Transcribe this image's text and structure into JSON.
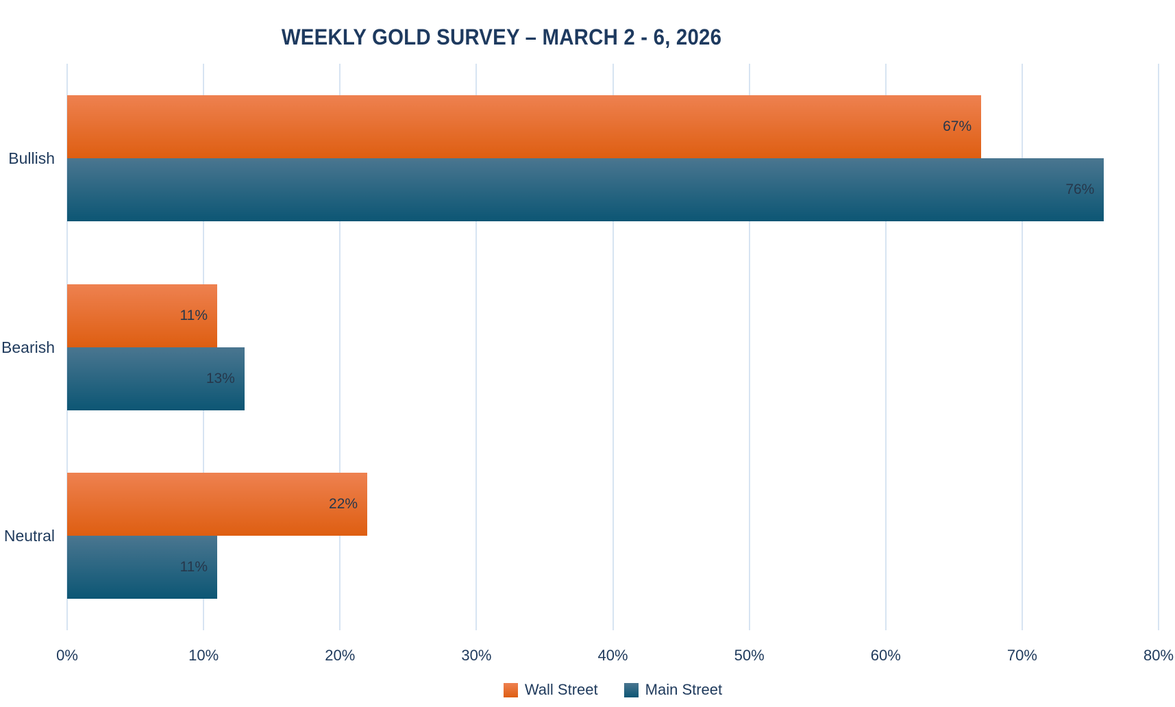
{
  "chart_data": {
    "type": "bar",
    "orientation": "horizontal",
    "title": "WEEKLY GOLD SURVEY – MARCH 2 - 6, 2026",
    "categories": [
      "Bullish",
      "Bearish",
      "Neutral"
    ],
    "series": [
      {
        "name": "Wall Street",
        "values": [
          67,
          11,
          22
        ],
        "labels": [
          "67%",
          "11%",
          "22%"
        ],
        "color_top": "#EE8150",
        "color_bottom": "#DE5E11"
      },
      {
        "name": "Main Street",
        "values": [
          76,
          13,
          11
        ],
        "labels": [
          "76%",
          "13%",
          "11%"
        ],
        "color_top": "#4A7690",
        "color_bottom": "#0C5674"
      }
    ],
    "xlabel": "",
    "ylabel": "",
    "xlim": [
      0,
      80
    ],
    "x_tick_values": [
      0,
      10,
      20,
      30,
      40,
      50,
      60,
      70,
      80
    ],
    "x_ticks": [
      "0%",
      "10%",
      "20%",
      "30%",
      "40%",
      "50%",
      "60%",
      "70%",
      "80%"
    ],
    "grid": true,
    "gridline_color": "#D7E4F2",
    "background_color": "#FFFFFF",
    "title_color": "#1E3A5F",
    "axis_text_color": "#1F3A5C",
    "data_label_color": "#26374B",
    "legend_position": "bottom"
  }
}
